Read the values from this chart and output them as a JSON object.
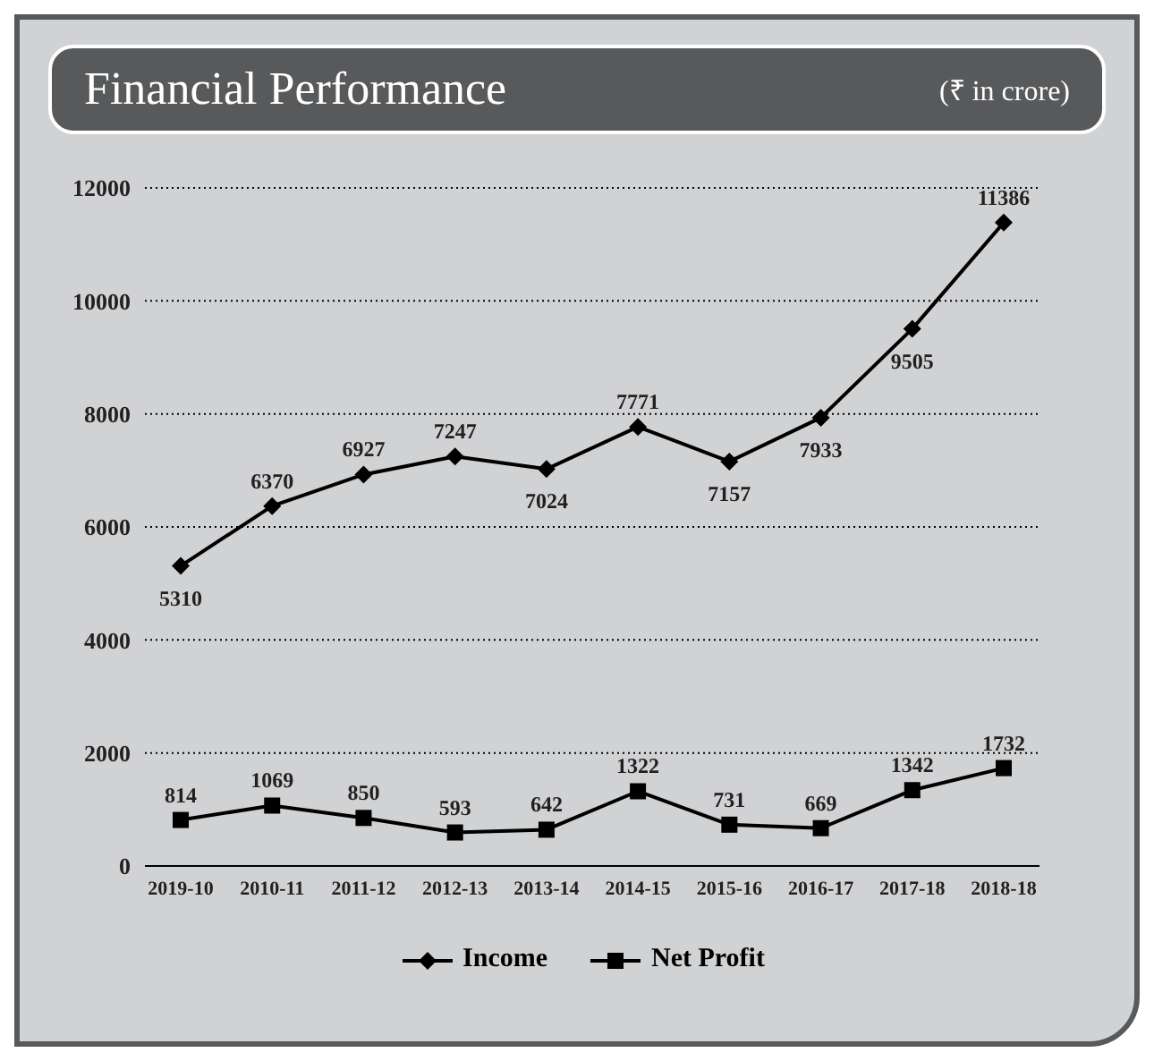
{
  "chart_data": {
    "type": "line",
    "title": "Financial  Performance",
    "subtitle": "(₹ in crore)",
    "categories": [
      "2019-10",
      "2010-11",
      "2011-12",
      "2012-13",
      "2013-14",
      "2014-15",
      "2015-16",
      "2016-17",
      "2017-18",
      "2018-18"
    ],
    "series": [
      {
        "name": "Income",
        "color": "#000000",
        "marker": "diamond",
        "values": [
          5310,
          6370,
          6927,
          7247,
          7024,
          7771,
          7157,
          7933,
          9505,
          11386
        ]
      },
      {
        "name": "Net Profit",
        "color": "#000000",
        "marker": "square",
        "values": [
          814,
          1069,
          850,
          593,
          642,
          1322,
          731,
          669,
          1342,
          1732
        ]
      }
    ],
    "ylim": [
      0,
      12000
    ],
    "yticks": [
      0,
      2000,
      4000,
      6000,
      8000,
      10000,
      12000
    ],
    "grid": "y",
    "legend": "bottom",
    "data_labels": true,
    "line_style": "solid"
  }
}
